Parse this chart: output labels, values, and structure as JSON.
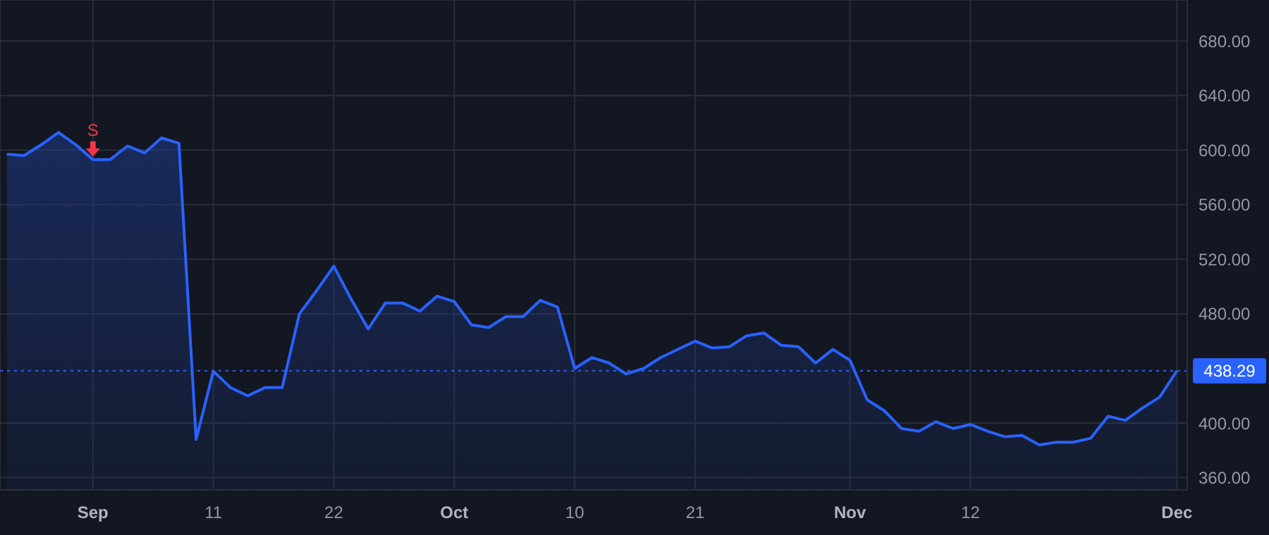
{
  "chart_data": {
    "type": "area",
    "categories": [
      null,
      null,
      null,
      null,
      null,
      "Sep",
      null,
      null,
      null,
      null,
      null,
      null,
      "11",
      null,
      null,
      null,
      null,
      null,
      null,
      "22",
      null,
      null,
      null,
      null,
      null,
      null,
      "Oct",
      null,
      null,
      null,
      null,
      null,
      null,
      "10",
      null,
      null,
      null,
      null,
      null,
      null,
      "21",
      null,
      null,
      null,
      null,
      null,
      null,
      null,
      null,
      "Nov",
      null,
      null,
      null,
      null,
      null,
      null,
      "12",
      null,
      null,
      null,
      null,
      null,
      null,
      null,
      null,
      null,
      null,
      null,
      "Dec"
    ],
    "series": [
      {
        "color": "#2962ff",
        "values": [
          597,
          596,
          604,
          613,
          604,
          593,
          593,
          603,
          598,
          609,
          605,
          388,
          438,
          426,
          420,
          426,
          426,
          480,
          497,
          515,
          491,
          469,
          488,
          488,
          482,
          493,
          489,
          472,
          470,
          478,
          478,
          490,
          485,
          440,
          448,
          444,
          436,
          440,
          448,
          454,
          460,
          455,
          456,
          464,
          466,
          457,
          456,
          444,
          454,
          446,
          417,
          409,
          396,
          394,
          401,
          396,
          399,
          394,
          390,
          391,
          384,
          386,
          386,
          389,
          405,
          402,
          411,
          419,
          438.29
        ]
      }
    ],
    "ylim": [
      351,
      710
    ],
    "yticks": [
      {
        "value": 360,
        "label": "360.00"
      },
      {
        "value": 400,
        "label": "400.00"
      },
      {
        "value": 480,
        "label": "480.00"
      },
      {
        "value": 520,
        "label": "520.00"
      },
      {
        "value": 560,
        "label": "560.00"
      },
      {
        "value": 600,
        "label": "600.00"
      },
      {
        "value": 640,
        "label": "640.00"
      },
      {
        "value": 680,
        "label": "680.00"
      }
    ],
    "grid": true,
    "ref_lines": [
      {
        "axis": "y",
        "value": 438.29,
        "label": "438.29",
        "color": "#2962ff",
        "line_style": "dotted"
      }
    ],
    "annotations": [
      {
        "text": "S",
        "x": "Sep",
        "y": 593
      }
    ]
  }
}
